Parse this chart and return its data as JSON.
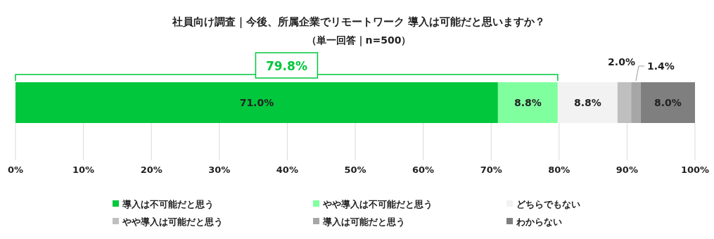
{
  "chart_data": {
    "type": "bar",
    "orientation": "horizontal",
    "stacked": true,
    "title": "社員向け調査｜今後、所属企業でリモートワーク 導入は可能だと思いますか？",
    "subtitle": "（単一回答｜n=500）",
    "categories": [
      null
    ],
    "series": [
      {
        "name": "導入は不可能だと思う",
        "color": "#00c73c",
        "values": [
          71.0
        ],
        "value_labels": [
          "71.0%"
        ]
      },
      {
        "name": "やや導入は不可能だと思う",
        "color": "#80ff9f",
        "values": [
          8.8
        ],
        "value_labels": [
          "8.8%"
        ]
      },
      {
        "name": "どちらでもない",
        "color": "#f2f2f2",
        "values": [
          8.8
        ],
        "value_labels": [
          "8.8%"
        ]
      },
      {
        "name": "やや導入は可能だと思う",
        "color": "#bfbfbf",
        "values": [
          2.0
        ],
        "value_labels": [
          "2.0%"
        ]
      },
      {
        "name": "導入は可能だと思う",
        "color": "#a6a6a6",
        "values": [
          1.4
        ],
        "value_labels": [
          "1.4%"
        ]
      },
      {
        "name": "わからない",
        "color": "#7f7f7f",
        "values": [
          8.0
        ],
        "value_labels": [
          "8.0%"
        ]
      }
    ],
    "xlim": [
      0,
      100
    ],
    "xticks": [
      {
        "value": 0,
        "label": "0%"
      },
      {
        "value": 10,
        "label": "10%"
      },
      {
        "value": 20,
        "label": "20%"
      },
      {
        "value": 30,
        "label": "30%"
      },
      {
        "value": 40,
        "label": "40%"
      },
      {
        "value": 50,
        "label": "50%"
      },
      {
        "value": 60,
        "label": "60%"
      },
      {
        "value": 70,
        "label": "70%"
      },
      {
        "value": 80,
        "label": "80%"
      },
      {
        "value": 90,
        "label": "90%"
      },
      {
        "value": 100,
        "label": "100%"
      }
    ],
    "annotations": [
      "79.8%"
    ],
    "grid": "x",
    "legend": "bottom"
  }
}
